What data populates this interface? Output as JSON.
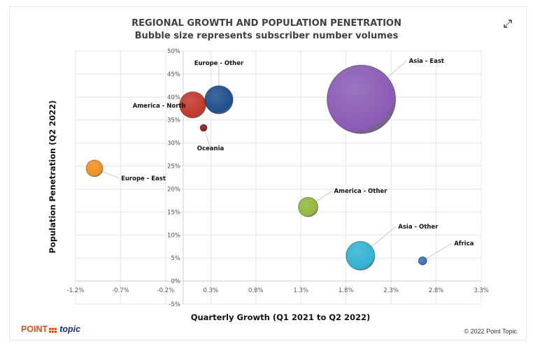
{
  "header": {
    "title": "REGIONAL GROWTH AND POPULATION PENETRATION",
    "subtitle": "Bubble size represents subscriber number volumes",
    "expand_icon": "expand-arrows-icon"
  },
  "footer": {
    "logo_point": "POINT",
    "logo_topic": "topic",
    "copyright": "© 2022 Point Topic"
  },
  "chart_data": {
    "type": "scatter",
    "subtype": "bubble",
    "title": "REGIONAL GROWTH AND POPULATION PENETRATION",
    "subtitle": "Bubble size represents subscriber number volumes",
    "xlabel": "Quarterly Growth (Q1 2021 to Q2 2022)",
    "ylabel": "Population Penetration (Q2 2022)",
    "xlim": [
      -1.2,
      3.3
    ],
    "ylim": [
      -5,
      50
    ],
    "x_unit": "%",
    "y_unit": "%",
    "x_ticks": [
      "-1.2%",
      "-0.7%",
      "-0.2%",
      "0.3%",
      "0.8%",
      "1.3%",
      "1.8%",
      "2.3%",
      "2.8%",
      "3.3%"
    ],
    "x_tick_values": [
      -1.2,
      -0.7,
      -0.2,
      0.3,
      0.8,
      1.3,
      1.8,
      2.3,
      2.8,
      3.3
    ],
    "y_ticks": [
      "-5%",
      "0%",
      "5%",
      "10%",
      "15%",
      "20%",
      "25%",
      "30%",
      "35%",
      "40%",
      "45%",
      "50%"
    ],
    "y_tick_values": [
      -5,
      0,
      5,
      10,
      15,
      20,
      25,
      30,
      35,
      40,
      45,
      50
    ],
    "grid": true,
    "legend": "none",
    "series": [
      {
        "name": "America - North",
        "x": 0.1,
        "y": 38.3,
        "size": 100,
        "color": "#c0392b"
      },
      {
        "name": "Europe - Other",
        "x": 0.39,
        "y": 39.4,
        "size": 115,
        "color": "#1f4e8c"
      },
      {
        "name": "Oceania",
        "x": 0.22,
        "y": 33.3,
        "size": 6,
        "color": "#8b1a1a"
      },
      {
        "name": "Europe - East",
        "x": -0.99,
        "y": 24.5,
        "size": 40,
        "color": "#f0901e"
      },
      {
        "name": "Asia - East",
        "x": 1.97,
        "y": 39.5,
        "size": 680,
        "color": "#8a5bb5"
      },
      {
        "name": "America - Other",
        "x": 1.38,
        "y": 16.1,
        "size": 55,
        "color": "#92b83a"
      },
      {
        "name": "Asia - Other",
        "x": 1.96,
        "y": 5.5,
        "size": 120,
        "color": "#31b3d4"
      },
      {
        "name": "Africa",
        "x": 2.65,
        "y": 4.4,
        "size": 10,
        "color": "#3470c0"
      }
    ]
  }
}
